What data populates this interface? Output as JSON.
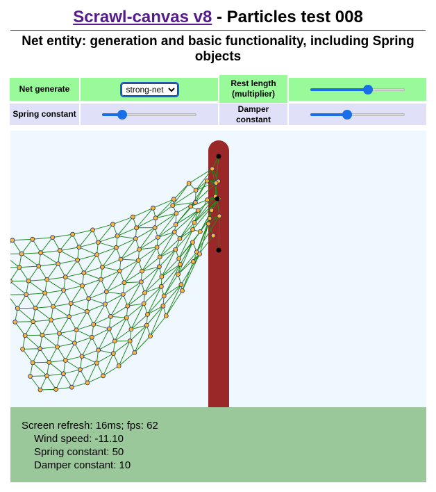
{
  "header": {
    "link_text": "Scrawl-canvas v8",
    "title_rest": " - Particles test 008",
    "subtitle": "Net entity: generation and basic functionality, including Spring objects"
  },
  "controls": {
    "net_generate_label": "Net generate",
    "net_generate_value": "strong-net",
    "rest_length_label": "Rest length (multiplier)",
    "rest_length_value": 0.62,
    "spring_constant_label": "Spring constant",
    "spring_constant_value": 0.18,
    "damper_constant_label": "Damper constant",
    "damper_constant_value": 0.38
  },
  "status": {
    "refresh": "Screen refresh: 16ms; fps: 62",
    "wind": "Wind speed: -11.10",
    "spring": "Spring constant: 50",
    "damper": "Damper constant: 10"
  },
  "colors": {
    "accent": "#1a6fe8",
    "control_green": "#98fa98",
    "control_lavender": "#e0e0f8",
    "canvas_bg": "#f0f8ff",
    "status_bg": "#9ac89a",
    "pole": "#9b2828",
    "net_line": "#1e8a1e",
    "particle": "#f5b83d",
    "pin": "#000000"
  }
}
